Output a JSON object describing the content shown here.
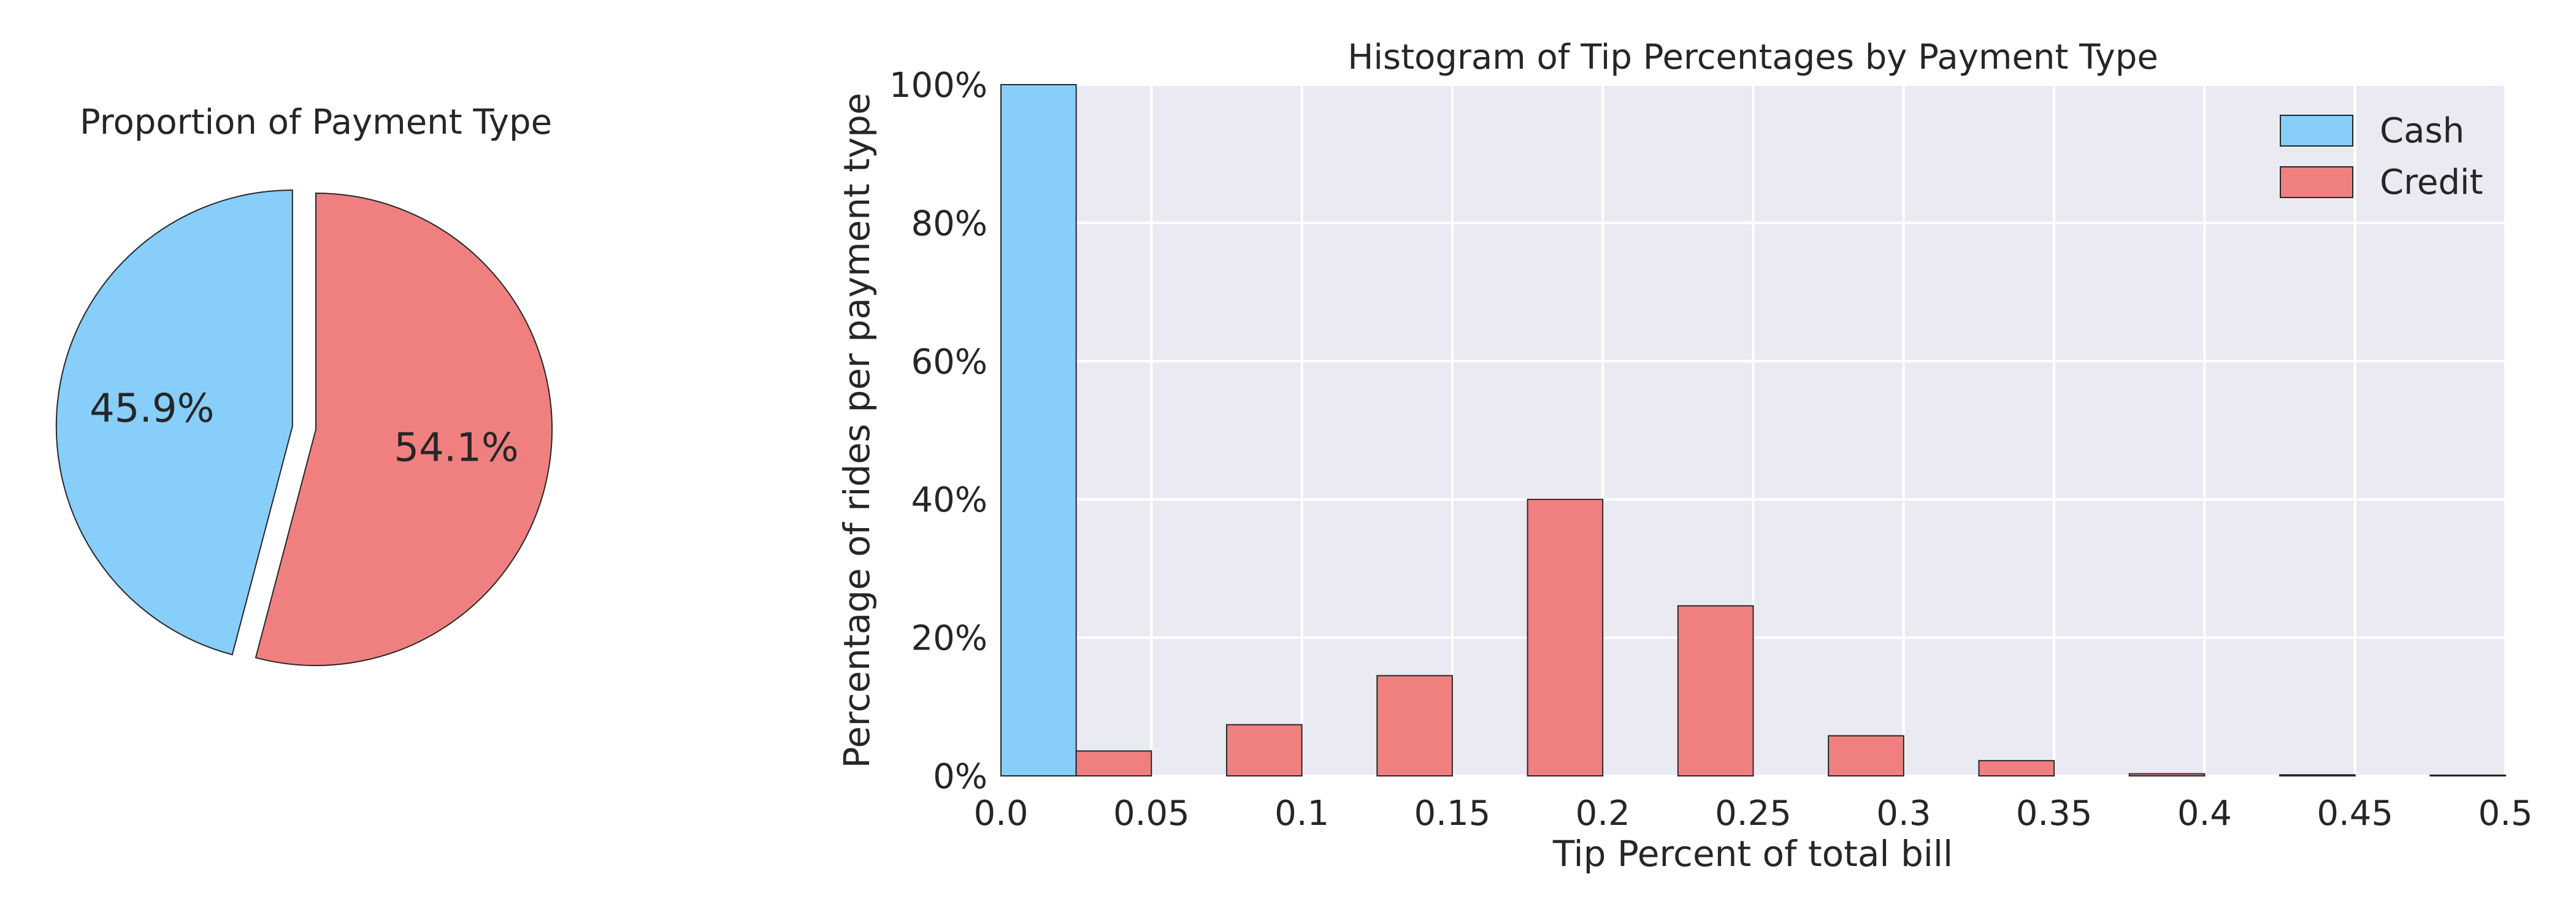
{
  "colors": {
    "cash": "#87CEFA",
    "credit": "#F08080",
    "plot_background": "#EAEAF2",
    "grid": "#FFFFFF",
    "edge": "#262626"
  },
  "chart_data": [
    {
      "type": "pie",
      "title": "Proportion of Payment Type",
      "slices": [
        {
          "name": "Cash",
          "value": 45.9,
          "label": "45.9%",
          "color": "#87CEFA",
          "exploded": true
        },
        {
          "name": "Credit",
          "value": 54.1,
          "label": "54.1%",
          "color": "#F08080",
          "exploded": false
        }
      ],
      "start_angle_deg": 90,
      "direction": "counterclockwise"
    },
    {
      "type": "bar",
      "title": "Histogram of Tip Percentages by Payment Type",
      "xlabel": "Tip Percent of total bill",
      "ylabel": "Percentage of rides per payment type",
      "xlim": [
        0.0,
        0.5
      ],
      "ylim": [
        0,
        100
      ],
      "bin_width": 0.05,
      "bins": [
        0.0,
        0.05,
        0.1,
        0.15,
        0.2,
        0.25,
        0.3,
        0.35,
        0.4,
        0.45
      ],
      "xticks": [
        {
          "value": 0.0,
          "label": "0.0"
        },
        {
          "value": 0.05,
          "label": "0.05"
        },
        {
          "value": 0.1,
          "label": "0.1"
        },
        {
          "value": 0.15,
          "label": "0.15"
        },
        {
          "value": 0.2,
          "label": "0.2"
        },
        {
          "value": 0.25,
          "label": "0.25"
        },
        {
          "value": 0.3,
          "label": "0.3"
        },
        {
          "value": 0.35,
          "label": "0.35"
        },
        {
          "value": 0.4,
          "label": "0.4"
        },
        {
          "value": 0.45,
          "label": "0.45"
        },
        {
          "value": 0.5,
          "label": "0.5"
        }
      ],
      "yticks": [
        {
          "value": 0,
          "label": "0%"
        },
        {
          "value": 20,
          "label": "20%"
        },
        {
          "value": 40,
          "label": "40%"
        },
        {
          "value": 60,
          "label": "60%"
        },
        {
          "value": 80,
          "label": "80%"
        },
        {
          "value": 100,
          "label": "100%"
        }
      ],
      "series": [
        {
          "name": "Cash",
          "color": "#87CEFA",
          "values": [
            100,
            0,
            0,
            0,
            0,
            0,
            0,
            0,
            0,
            0
          ]
        },
        {
          "name": "Credit",
          "color": "#F08080",
          "values": [
            3.6,
            7.4,
            14.5,
            40.0,
            24.6,
            5.8,
            2.2,
            0.3,
            0.15,
            0.1
          ]
        }
      ],
      "legend": {
        "placement": "top-right"
      },
      "grid": true
    }
  ]
}
